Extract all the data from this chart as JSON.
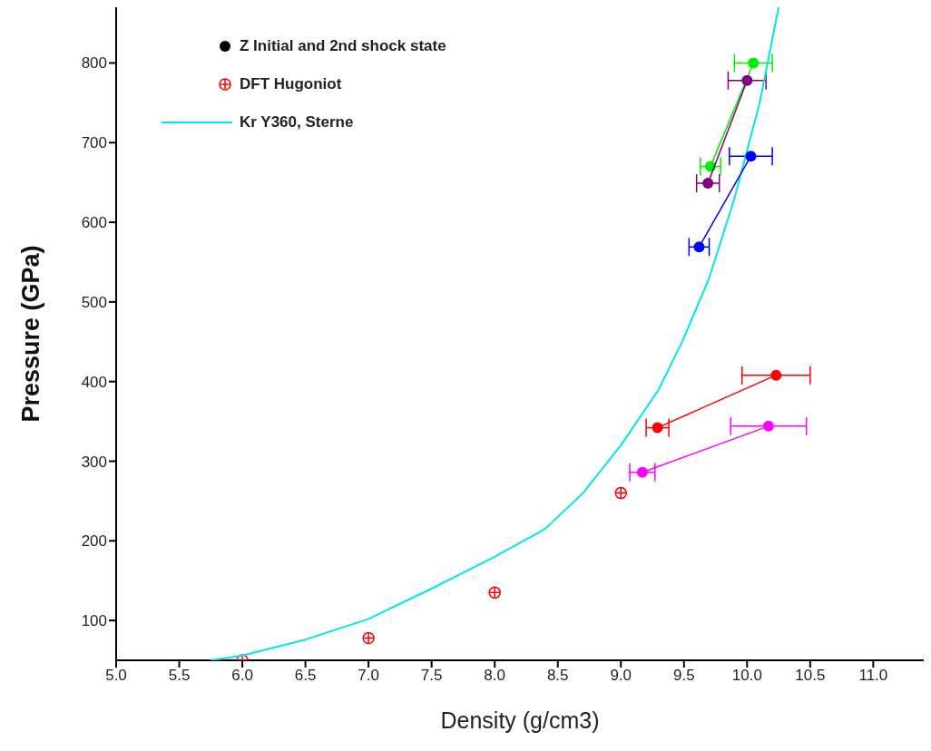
{
  "chart_data": {
    "type": "scatter",
    "xlabel": "Density (g/cm3)",
    "ylabel": "Pressure (GPa)",
    "xlim": [
      5,
      11.4
    ],
    "ylim": [
      50,
      870
    ],
    "xticks": [
      {
        "value": 5,
        "label": "5.0"
      },
      5.5,
      {
        "value": 6,
        "label": "6.0"
      },
      6.5,
      {
        "value": 7,
        "label": "7.0"
      },
      7.5,
      {
        "value": 8,
        "label": "8.0"
      },
      8.5,
      {
        "value": 9,
        "label": "9.0"
      },
      9.5,
      {
        "value": 10,
        "label": "10.0"
      },
      10.5,
      {
        "value": 11,
        "label": "11.0"
      }
    ],
    "yticks": [
      100,
      200,
      300,
      400,
      500,
      600,
      700,
      800
    ],
    "grid": false,
    "legend": "top left",
    "series": [
      {
        "name": "Z Initial and 2nd shock state",
        "marker": "circle",
        "color": "#000000"
      },
      {
        "name": "DFT Hugoniot",
        "marker": "circle",
        "color": "#ff0000",
        "x": [
          6.0,
          7.0,
          8.0,
          9.0
        ],
        "values": [
          50,
          78,
          135,
          260
        ]
      },
      {
        "name": "Kr Y360, Sterne",
        "type": "line",
        "marker": "none",
        "color": "#00e5ee",
        "x": [
          5.75,
          6.0,
          6.5,
          7.0,
          7.5,
          8.0,
          8.4,
          8.7,
          9.0,
          9.3,
          9.5,
          9.7,
          9.9,
          10.1,
          10.25
        ],
        "values": [
          50,
          56,
          76,
          102,
          140,
          180,
          215,
          260,
          320,
          390,
          455,
          530,
          630,
          750,
          870
        ]
      },
      {
        "type": "line",
        "marker": "circle",
        "color": "#00ee00",
        "x": [
          9.71,
          10.05
        ],
        "values": [
          670,
          800
        ],
        "xerrors": [
          0.08,
          0.15
        ]
      },
      {
        "type": "line",
        "marker": "circle",
        "color": "#800080",
        "x": [
          9.69,
          10.0
        ],
        "values": [
          649,
          778
        ],
        "xerrors": [
          0.09,
          0.15
        ]
      },
      {
        "type": "line",
        "marker": "circle",
        "color": "#0000ff",
        "x": [
          9.62,
          10.03
        ],
        "values": [
          569,
          683
        ],
        "xerrors": [
          0.08,
          0.17
        ]
      },
      {
        "type": "line",
        "marker": "circle",
        "color": "#ff0000",
        "x": [
          9.29,
          10.23
        ],
        "values": [
          342,
          408
        ],
        "xerrors": [
          0.09,
          0.27
        ]
      },
      {
        "type": "line",
        "marker": "circle",
        "color": "#ff00ff",
        "x": [
          9.17,
          10.17
        ],
        "values": [
          286,
          344
        ],
        "xerrors": [
          0.1,
          0.3
        ]
      }
    ]
  }
}
